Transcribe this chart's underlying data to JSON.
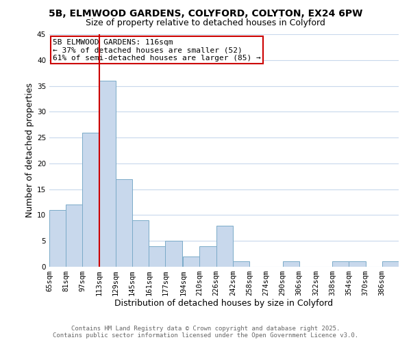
{
  "title_line1": "5B, ELMWOOD GARDENS, COLYFORD, COLYTON, EX24 6PW",
  "title_line2": "Size of property relative to detached houses in Colyford",
  "xlabel": "Distribution of detached houses by size in Colyford",
  "ylabel": "Number of detached properties",
  "bin_labels": [
    "65sqm",
    "81sqm",
    "97sqm",
    "113sqm",
    "129sqm",
    "145sqm",
    "161sqm",
    "177sqm",
    "194sqm",
    "210sqm",
    "226sqm",
    "242sqm",
    "258sqm",
    "274sqm",
    "290sqm",
    "306sqm",
    "322sqm",
    "338sqm",
    "354sqm",
    "370sqm",
    "386sqm"
  ],
  "bin_edges": [
    65,
    81,
    97,
    113,
    129,
    145,
    161,
    177,
    194,
    210,
    226,
    242,
    258,
    274,
    290,
    306,
    322,
    338,
    354,
    370,
    386
  ],
  "counts": [
    11,
    12,
    26,
    36,
    17,
    9,
    4,
    5,
    2,
    4,
    8,
    1,
    0,
    0,
    1,
    0,
    0,
    1,
    1,
    0,
    1
  ],
  "bar_color": "#c8d8ec",
  "bar_edge_color": "#7aaac8",
  "vline_x": 113,
  "vline_color": "#cc0000",
  "annotation_text": "5B ELMWOOD GARDENS: 116sqm\n← 37% of detached houses are smaller (52)\n61% of semi-detached houses are larger (85) →",
  "annotation_box_color": "#ffffff",
  "annotation_box_edge_color": "#cc0000",
  "ylim": [
    0,
    45
  ],
  "yticks": [
    0,
    5,
    10,
    15,
    20,
    25,
    30,
    35,
    40,
    45
  ],
  "footer_line1": "Contains HM Land Registry data © Crown copyright and database right 2025.",
  "footer_line2": "Contains public sector information licensed under the Open Government Licence v3.0.",
  "background_color": "#ffffff",
  "grid_color": "#c8d8ec",
  "title_fontsize": 10,
  "subtitle_fontsize": 9,
  "xlabel_fontsize": 9,
  "ylabel_fontsize": 9,
  "tick_fontsize": 7.5,
  "annotation_fontsize": 8,
  "footer_fontsize": 6.5
}
